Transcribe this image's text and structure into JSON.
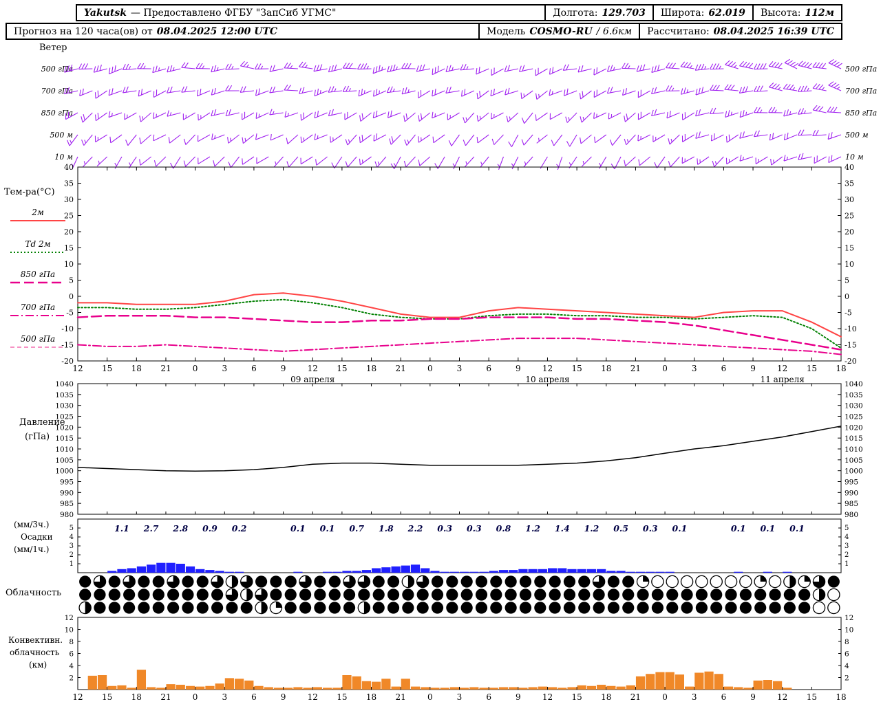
{
  "header": {
    "station": "Yakutsk",
    "provider": "— Предоставлено ФГБУ \"ЗапСиб УГМС\"",
    "lon_label": "Долгота:",
    "lon": "129.703",
    "lat_label": "Широта:",
    "lat": "62.019",
    "alt_label": "Высота:",
    "alt": "112м"
  },
  "subheader": {
    "forecast_label": "Прогноз на 120 часа(ов) от",
    "run_time": "08.04.2025 12:00 UTC",
    "model_label": "Модель",
    "model_name": "COSMO-RU",
    "model_res": "/ 6.6км",
    "calc_label": "Рассчитано:",
    "calc_time": "08.04.2025 16:39 UTC"
  },
  "colors": {
    "frame": "#000000",
    "wind_barbs": "#a020f0",
    "temp_2m": "#ff4444",
    "dewpoint": "#008000",
    "t850": "#e8008c",
    "t700": "#e8008c",
    "t500": "#f050a0",
    "pressure_line": "#000000",
    "precip_bars": "#2020ff",
    "precip_values": "#000044",
    "convective_bars": "#f08828"
  },
  "chart_data": [
    {
      "id": "wind",
      "type": "wind-barbs",
      "title": "Ветер",
      "color": "#a020f0",
      "levels": [
        {
          "name": "500 гПа",
          "dir": [
            255,
            258,
            260,
            262,
            265,
            268,
            270,
            270,
            268,
            265,
            262,
            260,
            258,
            255,
            252,
            250,
            250,
            252,
            255,
            260,
            265,
            270,
            275,
            278,
            282,
            286,
            290
          ],
          "spd": [
            16,
            16,
            14,
            14,
            12,
            14,
            14,
            12,
            14,
            16,
            18,
            18,
            16,
            14,
            12,
            12,
            10,
            12,
            12,
            14,
            16,
            18,
            18,
            20,
            20,
            22,
            22
          ]
        },
        {
          "name": "700 гПа",
          "dir": [
            245,
            248,
            250,
            252,
            255,
            258,
            260,
            262,
            260,
            258,
            255,
            252,
            250,
            248,
            245,
            242,
            240,
            242,
            245,
            250,
            255,
            260,
            265,
            270,
            274,
            278,
            282
          ],
          "spd": [
            12,
            12,
            12,
            10,
            10,
            12,
            12,
            10,
            12,
            14,
            14,
            14,
            12,
            12,
            10,
            10,
            8,
            10,
            10,
            12,
            12,
            14,
            16,
            16,
            18,
            18,
            18
          ]
        },
        {
          "name": "850 гПа",
          "dir": [
            235,
            238,
            240,
            242,
            245,
            248,
            250,
            250,
            248,
            245,
            242,
            240,
            238,
            235,
            232,
            230,
            230,
            232,
            235,
            240,
            245,
            250,
            255,
            260,
            264,
            268,
            272
          ],
          "spd": [
            10,
            10,
            8,
            8,
            8,
            10,
            10,
            8,
            10,
            10,
            12,
            12,
            10,
            8,
            8,
            8,
            6,
            8,
            8,
            10,
            10,
            12,
            12,
            14,
            14,
            14,
            16
          ]
        },
        {
          "name": "500 м",
          "dir": [
            225,
            228,
            230,
            232,
            235,
            238,
            240,
            240,
            238,
            235,
            232,
            230,
            228,
            225,
            222,
            220,
            220,
            222,
            225,
            230,
            235,
            240,
            245,
            250,
            254,
            258,
            262
          ],
          "spd": [
            8,
            8,
            6,
            6,
            6,
            8,
            8,
            6,
            8,
            8,
            10,
            10,
            8,
            6,
            6,
            6,
            4,
            6,
            6,
            8,
            8,
            10,
            10,
            10,
            12,
            12,
            12
          ]
        },
        {
          "name": "10 м",
          "dir": [
            215,
            218,
            220,
            222,
            225,
            228,
            230,
            230,
            228,
            225,
            222,
            220,
            218,
            215,
            212,
            210,
            210,
            212,
            215,
            220,
            225,
            230,
            235,
            240,
            244,
            248,
            252
          ],
          "spd": [
            4,
            4,
            4,
            6,
            6,
            6,
            6,
            4,
            6,
            6,
            8,
            8,
            6,
            4,
            4,
            4,
            2,
            4,
            4,
            6,
            6,
            8,
            8,
            8,
            8,
            10,
            10
          ]
        }
      ]
    },
    {
      "id": "temperature",
      "type": "line",
      "ylabel": "Тем-ра(°C)",
      "ylim": [
        -20,
        40
      ],
      "yticks": [
        40,
        35,
        30,
        25,
        20,
        15,
        10,
        5,
        0,
        -5,
        -10,
        -15,
        -20
      ],
      "x_ticks": [
        "12",
        "15",
        "18",
        "21",
        "0",
        "3",
        "6",
        "9",
        "12",
        "15",
        "18",
        "21",
        "0",
        "3",
        "6",
        "9",
        "12",
        "15",
        "18",
        "21",
        "0",
        "3",
        "6",
        "9",
        "12",
        "15",
        "18"
      ],
      "dates": [
        {
          "label": "09 апреля",
          "tick": 8
        },
        {
          "label": "10 апреля",
          "tick": 16
        },
        {
          "label": "11 апреля",
          "tick": 24
        }
      ],
      "series": [
        {
          "name": "2м",
          "color": "#ff4444",
          "width": 2,
          "dash": "",
          "values": [
            -2,
            -2,
            -2.5,
            -2.5,
            -2.5,
            -1.5,
            0.5,
            1,
            0,
            -1.5,
            -3.5,
            -5.5,
            -6.5,
            -6.5,
            -4.5,
            -3.5,
            -4,
            -4.5,
            -5,
            -5.5,
            -6,
            -6.5,
            -5,
            -4.5,
            -4.5,
            -8,
            -12.5
          ]
        },
        {
          "name": "Td 2м",
          "color": "#008000",
          "width": 2,
          "dash": "2 3",
          "values": [
            -3.5,
            -3.5,
            -4,
            -4,
            -3.5,
            -2.5,
            -1.5,
            -1,
            -2,
            -3.5,
            -5.5,
            -6.5,
            -7,
            -7,
            -6,
            -5.5,
            -5.5,
            -6,
            -6,
            -6.5,
            -6.5,
            -7,
            -6.5,
            -6,
            -6.5,
            -10,
            -16
          ]
        },
        {
          "name": "850 гПа",
          "color": "#e8008c",
          "width": 2.5,
          "dash": "14 6",
          "values": [
            -6.5,
            -6,
            -6,
            -6,
            -6.5,
            -6.5,
            -7,
            -7.5,
            -8,
            -8,
            -7.5,
            -7.5,
            -7,
            -7,
            -6.5,
            -6.5,
            -6.5,
            -7,
            -7,
            -7.5,
            -8,
            -9,
            -10.5,
            -12,
            -13.5,
            -15,
            -16.5
          ]
        },
        {
          "name": "700 гПа",
          "color": "#e8008c",
          "width": 2,
          "dash": "12 4 2 4",
          "values": [
            -15,
            -15.5,
            -15.5,
            -15,
            -15.5,
            -16,
            -16.5,
            -17,
            -16.5,
            -16,
            -15.5,
            -15,
            -14.5,
            -14,
            -13.5,
            -13,
            -13,
            -13,
            -13.5,
            -14,
            -14.5,
            -15,
            -15.5,
            -16,
            -16.5,
            -17,
            -18
          ]
        },
        {
          "name": "500 гПа",
          "color": "#f050a0",
          "width": 1.2,
          "dash": "6 4",
          "values": []
        }
      ]
    },
    {
      "id": "pressure",
      "type": "line",
      "ylabel": "Давление",
      "yunits": "(гПа)",
      "ylim": [
        980,
        1040
      ],
      "yticks": [
        1040,
        1035,
        1030,
        1025,
        1020,
        1015,
        1010,
        1005,
        1000,
        995,
        990,
        985,
        980
      ],
      "series": [
        {
          "name": "Давление",
          "color": "#000000",
          "width": 1.5,
          "values": [
            1001.5,
            1001,
            1000.5,
            1000,
            999.8,
            1000,
            1000.5,
            1001.5,
            1003,
            1003.5,
            1003.5,
            1003,
            1002.5,
            1002.5,
            1002.5,
            1002.5,
            1003,
            1003.5,
            1004.5,
            1006,
            1008,
            1010,
            1011.5,
            1013.5,
            1015.5,
            1018,
            1020.5
          ]
        }
      ]
    },
    {
      "id": "precipitation",
      "type": "bar",
      "label_top": "(мм/3ч.)",
      "label_mid": "Осадки",
      "label_bot": "(мм/1ч.)",
      "ylim": [
        0,
        6
      ],
      "yticks": [
        5,
        4,
        3,
        2,
        1
      ],
      "bar_color": "#2020ff",
      "value_color": "#000044",
      "values_3h": [
        null,
        1.1,
        2.7,
        2.8,
        0.9,
        0.2,
        null,
        0.1,
        0.1,
        0.7,
        1.8,
        2.2,
        0.3,
        0.3,
        0.8,
        1.2,
        1.4,
        1.2,
        0.5,
        0.3,
        0.1,
        null,
        0.1,
        0.1,
        0.1,
        null
      ],
      "hourly": [
        0,
        0,
        0,
        0.2,
        0.4,
        0.5,
        0.7,
        0.9,
        1.1,
        1.1,
        1,
        0.7,
        0.4,
        0.3,
        0.2,
        0.1,
        0.1,
        0,
        0,
        0,
        0,
        0,
        0.1,
        0,
        0,
        0.1,
        0.1,
        0.2,
        0.2,
        0.3,
        0.5,
        0.6,
        0.7,
        0.8,
        0.9,
        0.5,
        0.2,
        0.1,
        0.1,
        0.1,
        0.1,
        0.1,
        0.2,
        0.3,
        0.3,
        0.4,
        0.4,
        0.4,
        0.5,
        0.5,
        0.4,
        0.4,
        0.4,
        0.4,
        0.2,
        0.2,
        0.1,
        0.1,
        0.1,
        0.1,
        0.1,
        0,
        0,
        0,
        0,
        0,
        0,
        0.1,
        0,
        0,
        0.1,
        0,
        0.1,
        0,
        0,
        0,
        0,
        0
      ]
    },
    {
      "id": "cloudiness",
      "type": "symbols",
      "label": "Облачность",
      "rows": [
        [
          1,
          0.75,
          1,
          0.75,
          1,
          1,
          0.75,
          1,
          1,
          0.75,
          0.5,
          0.75,
          1,
          1,
          1,
          0.75,
          1,
          1,
          0.75,
          0.75,
          1,
          1,
          0.5,
          0.75,
          1,
          1,
          1,
          1,
          1,
          1,
          1,
          1,
          1,
          1,
          1,
          0.75,
          1,
          1,
          0.25,
          0,
          0,
          0,
          0,
          0,
          0,
          0,
          0.25,
          0,
          0.5,
          0.25,
          0.75,
          1
        ],
        [
          1,
          1,
          1,
          1,
          1,
          1,
          1,
          1,
          1,
          1,
          0.75,
          0.5,
          0.75,
          1,
          1,
          1,
          1,
          1,
          1,
          1,
          1,
          1,
          1,
          1,
          1,
          1,
          1,
          1,
          1,
          1,
          1,
          1,
          1,
          1,
          1,
          1,
          1,
          1,
          1,
          1,
          1,
          1,
          1,
          1,
          1,
          1,
          1,
          1,
          1,
          1,
          0.5,
          0
        ],
        [
          0.5,
          1,
          1,
          1,
          1,
          1,
          1,
          1,
          1,
          1,
          1,
          1,
          0.5,
          0.25,
          1,
          1,
          1,
          1,
          1,
          0.5,
          1,
          1,
          1,
          1,
          1,
          1,
          1,
          1,
          1,
          1,
          1,
          1,
          1,
          1,
          1,
          1,
          1,
          1,
          1,
          1,
          1,
          1,
          1,
          1,
          1,
          1,
          1,
          1,
          1,
          1,
          0,
          0
        ]
      ]
    },
    {
      "id": "convective",
      "type": "bar",
      "label1": "Конвективн.",
      "label2": "облачность",
      "label3": "(км)",
      "ylim": [
        0,
        12
      ],
      "yticks": [
        12,
        10,
        8,
        6,
        4,
        2
      ],
      "bar_color": "#f08828",
      "hourly": [
        0,
        2.3,
        2.4,
        0.6,
        0.7,
        0.3,
        3.3,
        0.4,
        0.3,
        0.9,
        0.8,
        0.6,
        0.5,
        0.6,
        1,
        1.9,
        1.8,
        1.5,
        0.6,
        0.4,
        0.3,
        0.3,
        0.4,
        0.3,
        0.4,
        0.3,
        0.3,
        2.4,
        2.2,
        1.4,
        1.3,
        1.8,
        0.5,
        1.8,
        0.5,
        0.4,
        0.3,
        0.3,
        0.4,
        0.3,
        0.4,
        0.3,
        0.3,
        0.4,
        0.4,
        0.3,
        0.4,
        0.5,
        0.4,
        0.3,
        0.4,
        0.7,
        0.6,
        0.8,
        0.6,
        0.5,
        0.7,
        2.2,
        2.6,
        2.9,
        2.9,
        2.5,
        0.5,
        2.8,
        3,
        2.6,
        0.5,
        0.4,
        0.3,
        1.5,
        1.6,
        1.4,
        0.3,
        0,
        0,
        0,
        0,
        0
      ]
    }
  ]
}
